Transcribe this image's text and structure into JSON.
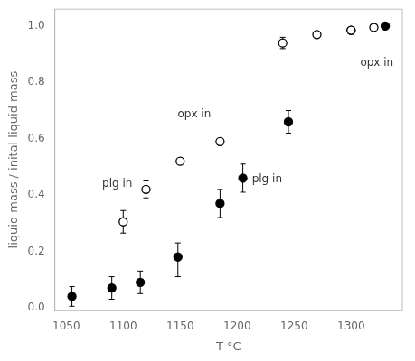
{
  "chart_data": {
    "type": "scatter",
    "xlabel": "T °C",
    "ylabel": "liquid mass / inital liquid mass",
    "xlim": [
      1040,
      1345
    ],
    "ylim": [
      -0.01,
      1.06
    ],
    "xticks": [
      1050,
      1100,
      1150,
      1200,
      1250,
      1300
    ],
    "yticks": [
      {
        "value": 0,
        "label": "0.0"
      },
      0.2,
      0.4,
      0.6,
      0.8,
      {
        "value": 1,
        "label": "1.0"
      }
    ],
    "grid": false,
    "series": [
      {
        "color": "#000000",
        "marker": "open_circle",
        "x": [
          1100,
          1120,
          1150,
          1185,
          1240,
          1270,
          1300,
          1320
        ],
        "values": [
          0.305,
          0.42,
          0.52,
          0.59,
          0.94,
          0.97,
          0.985,
          0.995
        ],
        "yerr_lo": [
          0.04,
          0.03,
          0.0,
          0.0,
          0.02,
          0.0,
          0.0,
          0.0
        ],
        "yerr_hi": [
          0.04,
          0.03,
          0.0,
          0.0,
          0.02,
          0.0,
          0.0,
          0.0
        ]
      },
      {
        "color": "#000000",
        "marker": "circle",
        "x": [
          1055,
          1090,
          1115,
          1148,
          1185,
          1205,
          1245,
          1300,
          1330
        ],
        "values": [
          0.04,
          0.07,
          0.09,
          0.18,
          0.37,
          0.46,
          0.66,
          0.985,
          1.0
        ],
        "yerr_lo": [
          0.035,
          0.04,
          0.04,
          0.07,
          0.05,
          0.05,
          0.04,
          0.0,
          0.0
        ],
        "yerr_hi": [
          0.035,
          0.04,
          0.04,
          0.05,
          0.05,
          0.05,
          0.04,
          0.0,
          0.0
        ]
      }
    ],
    "annotations": [
      {
        "text": "plg in",
        "x": 1108,
        "y": 0.44,
        "align": "right"
      },
      {
        "text": "opx in",
        "x": 1177,
        "y": 0.685,
        "align": "right"
      },
      {
        "text": "plg in",
        "x": 1213,
        "y": 0.455,
        "align": "left"
      },
      {
        "text": "opx in",
        "x": 1308,
        "y": 0.87,
        "align": "left"
      }
    ]
  }
}
